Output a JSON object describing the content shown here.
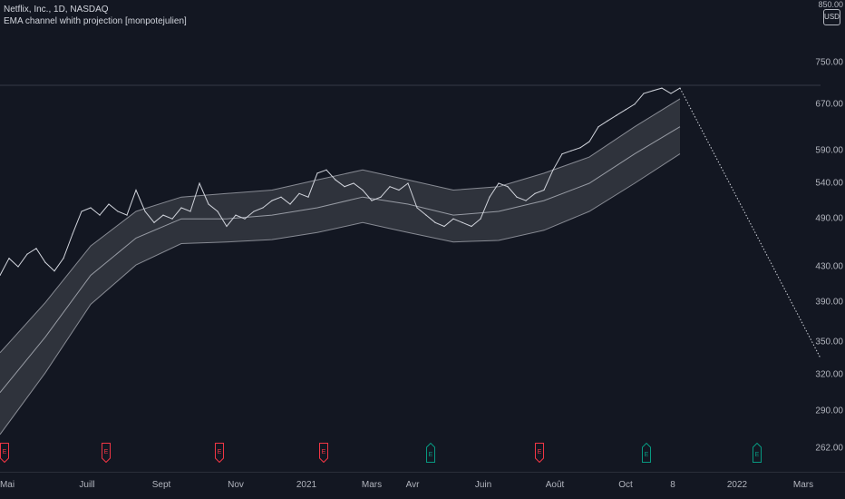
{
  "legend": {
    "symbol": "Netflix, Inc., 1D, NASDAQ",
    "indicator": "EMA channel whith projection [monpotejulien]"
  },
  "currency": "USD",
  "price_axis": {
    "top_label": "850.00",
    "ticks": [
      "750.00",
      "670.00",
      "590.00",
      "540.00",
      "490.00",
      "430.00",
      "390.00",
      "350.00",
      "320.00",
      "290.00",
      "262.00"
    ]
  },
  "time_axis": {
    "labels": [
      "Mai",
      "Juill",
      "Sept",
      "Nov",
      "2021",
      "Mars",
      "Avr",
      "Juin",
      "Août",
      "Oct",
      "8",
      "2022",
      "Mars"
    ]
  },
  "earnings": {
    "icon": "earnings-flag-icon",
    "letter": "E",
    "colors": {
      "negative": "#f23645",
      "positive": "#089981"
    },
    "flags": [
      "negative",
      "negative",
      "negative",
      "negative",
      "positive",
      "negative",
      "positive",
      "positive"
    ]
  },
  "colors": {
    "background": "#131722",
    "price_line": "#d1d4dc",
    "channel_fill": "#3a3d46",
    "channel_line": "#b2b5be",
    "projection": "#d1d4dc"
  },
  "chart_data": {
    "type": "line",
    "series": [
      {
        "name": "Netflix, Inc.",
        "x": [
          0,
          10,
          20,
          30,
          40,
          50,
          60,
          70,
          80,
          90,
          100,
          110,
          120,
          130,
          140,
          150,
          160,
          170,
          180,
          190,
          200,
          210,
          220,
          230,
          240,
          250,
          260,
          270,
          280,
          290,
          300,
          310,
          320,
          330,
          340,
          350,
          360,
          370,
          380,
          390,
          400,
          410,
          420,
          430,
          440,
          450,
          460,
          470,
          480,
          490,
          500,
          510,
          520,
          530,
          540,
          550,
          560,
          570,
          580,
          590,
          600,
          610,
          620,
          630,
          640,
          650,
          660,
          670,
          680,
          690,
          700,
          710,
          720,
          730,
          740,
          750
        ],
        "y": [
          420,
          440,
          430,
          445,
          452,
          435,
          425,
          440,
          470,
          500,
          505,
          495,
          510,
          500,
          495,
          530,
          500,
          485,
          495,
          490,
          505,
          500,
          540,
          510,
          500,
          480,
          495,
          490,
          500,
          505,
          515,
          520,
          510,
          525,
          520,
          555,
          560,
          545,
          535,
          540,
          530,
          515,
          520,
          535,
          530,
          540,
          505,
          495,
          485,
          480,
          490,
          485,
          480,
          490,
          520,
          540,
          535,
          520,
          515,
          525,
          530,
          560,
          585,
          590,
          595,
          605,
          630,
          640,
          650,
          660,
          670,
          690,
          695,
          700,
          690,
          700
        ]
      },
      {
        "name": "EMA upper",
        "x": [
          0,
          50,
          100,
          150,
          200,
          250,
          300,
          350,
          400,
          450,
          500,
          550,
          600,
          650,
          700,
          750
        ],
        "y": [
          340,
          390,
          455,
          500,
          520,
          525,
          530,
          545,
          560,
          545,
          530,
          535,
          555,
          580,
          630,
          680
        ]
      },
      {
        "name": "EMA",
        "x": [
          0,
          50,
          100,
          150,
          200,
          250,
          300,
          350,
          400,
          450,
          500,
          550,
          600,
          650,
          700,
          750
        ],
        "y": [
          305,
          355,
          420,
          465,
          490,
          490,
          495,
          505,
          520,
          510,
          495,
          500,
          515,
          540,
          585,
          630
        ]
      },
      {
        "name": "EMA lower",
        "x": [
          0,
          50,
          100,
          150,
          200,
          250,
          300,
          350,
          400,
          450,
          500,
          550,
          600,
          650,
          700,
          750
        ],
        "y": [
          272,
          322,
          388,
          432,
          458,
          460,
          463,
          472,
          485,
          472,
          460,
          462,
          475,
          500,
          540,
          585
        ]
      },
      {
        "name": "Projection",
        "x": [
          750,
          905
        ],
        "y": [
          700,
          335
        ]
      }
    ],
    "ylim": [
      255,
      860
    ],
    "ylog": true,
    "xlim": [
      0,
      905
    ]
  }
}
